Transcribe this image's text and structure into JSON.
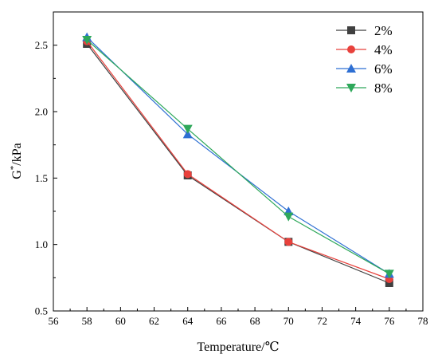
{
  "chart_data": {
    "type": "line",
    "title": "",
    "xlabel": "Temperature/℃",
    "ylabel_base": "G",
    "ylabel_sup": "*",
    "ylabel_suffix": "/kPa",
    "xlim": [
      56,
      78
    ],
    "ylim": [
      0.5,
      2.75
    ],
    "xticks": [
      56,
      58,
      60,
      62,
      64,
      66,
      68,
      70,
      72,
      74,
      76,
      78
    ],
    "yticks": [
      0.5,
      1.0,
      1.5,
      2.0,
      2.5
    ],
    "x": [
      58,
      64,
      70,
      76
    ],
    "grid": false,
    "legend_position": "top-right",
    "series": [
      {
        "name": "2%",
        "values": [
          2.51,
          1.52,
          1.02,
          0.71
        ],
        "color": "#404040",
        "marker": "square"
      },
      {
        "name": "4%",
        "values": [
          2.53,
          1.53,
          1.02,
          0.74
        ],
        "color": "#e8413c",
        "marker": "circle"
      },
      {
        "name": "6%",
        "values": [
          2.56,
          1.83,
          1.25,
          0.78
        ],
        "color": "#2e6fd3",
        "marker": "triangle-up"
      },
      {
        "name": "8%",
        "values": [
          2.54,
          1.87,
          1.21,
          0.78
        ],
        "color": "#2ea85a",
        "marker": "triangle-down"
      }
    ]
  }
}
